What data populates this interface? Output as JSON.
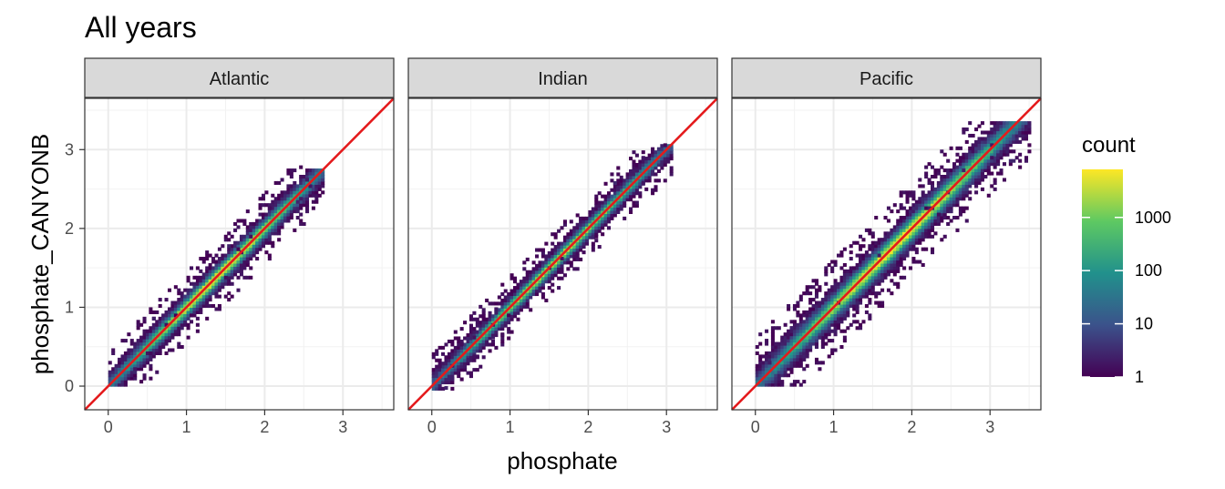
{
  "chart_data": {
    "type": "heatmap",
    "title": "All years",
    "xlabel": "phosphate",
    "ylabel": "phosphate_CANYONB",
    "xlim": [
      -0.3,
      3.65
    ],
    "ylim": [
      -0.3,
      3.65
    ],
    "x_ticks": [
      "0",
      "1",
      "2",
      "3"
    ],
    "y_ticks": [
      "0",
      "1",
      "2",
      "3"
    ],
    "grid": true,
    "reference_line": {
      "slope": 1,
      "intercept": 0,
      "color": "#e41a1c"
    },
    "legend": {
      "title": "count",
      "scale": "log10",
      "range": [
        1,
        8000
      ],
      "breaks": [
        "1",
        "10",
        "100",
        "1000"
      ],
      "colormap": [
        "#440154",
        "#3b528b",
        "#21918c",
        "#5ec962",
        "#fde725"
      ],
      "position": "right"
    },
    "facets": [
      {
        "label": "Atlantic",
        "x_range": [
          0,
          2.75
        ],
        "y_range": [
          0,
          2.75
        ],
        "spread": 0.13,
        "peak_count": 8000
      },
      {
        "label": "Indian",
        "x_range": [
          0,
          3.05
        ],
        "y_range": [
          -0.05,
          3.05
        ],
        "spread": 0.11,
        "peak_count": 3000
      },
      {
        "label": "Pacific",
        "x_range": [
          0,
          3.5
        ],
        "y_range": [
          0,
          3.35
        ],
        "spread": 0.17,
        "peak_count": 8000
      }
    ]
  }
}
